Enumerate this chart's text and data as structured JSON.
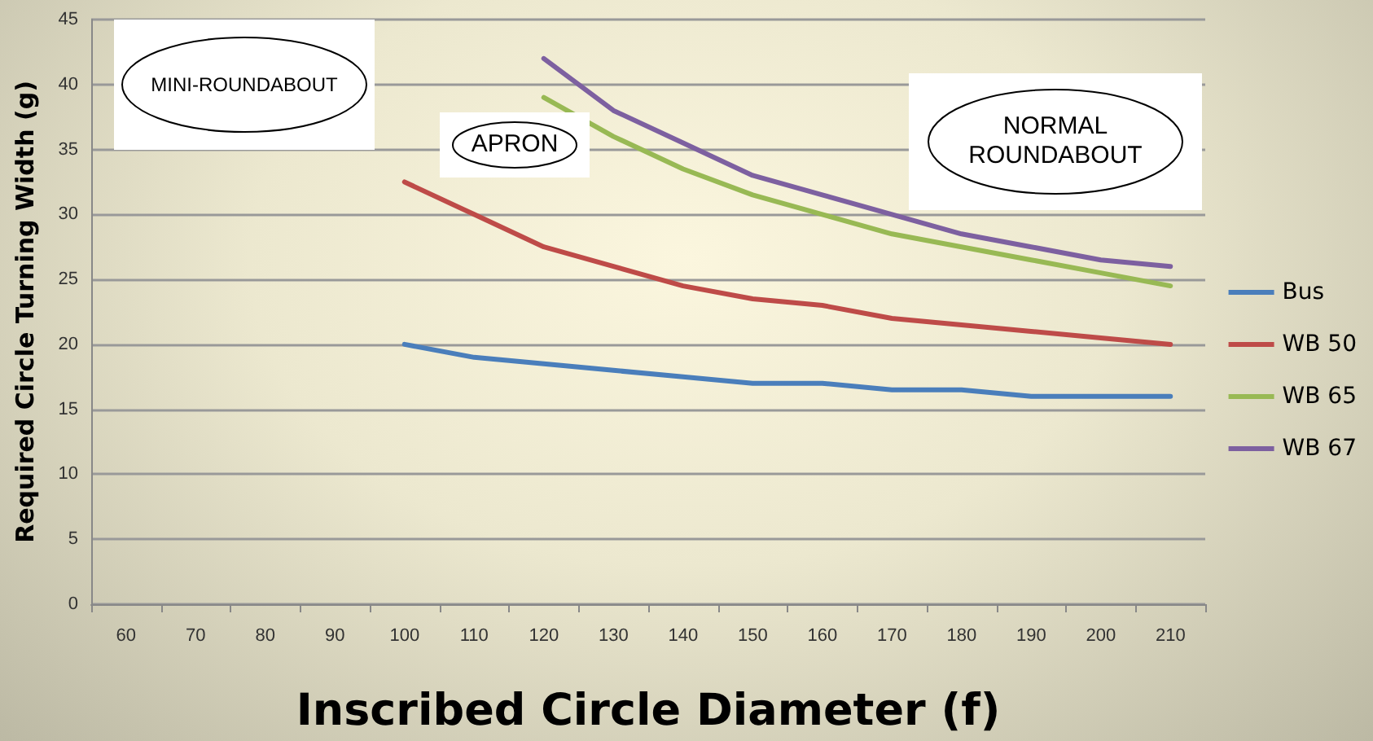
{
  "chart_data": {
    "type": "line",
    "xlabel": "Inscribed Circle Diameter (f)",
    "ylabel": "Required Circle Turning Width (g)",
    "categories": [
      "60",
      "70",
      "80",
      "90",
      "100",
      "110",
      "120",
      "130",
      "140",
      "150",
      "160",
      "170",
      "180",
      "190",
      "200",
      "210"
    ],
    "series": [
      {
        "name": "Bus",
        "color": "#4a7ebb",
        "values": [
          null,
          null,
          null,
          null,
          20,
          19,
          18.5,
          18,
          17.5,
          17,
          17,
          16.5,
          16.5,
          16,
          16,
          16
        ]
      },
      {
        "name": "WB 50",
        "color": "#be4b48",
        "values": [
          null,
          null,
          null,
          null,
          32.5,
          30,
          27.5,
          26,
          24.5,
          23.5,
          23,
          22,
          21.5,
          21,
          20.5,
          20
        ]
      },
      {
        "name": "WB 65",
        "color": "#98b954",
        "values": [
          null,
          null,
          null,
          null,
          null,
          null,
          39,
          36,
          33.5,
          31.5,
          30,
          28.5,
          27.5,
          26.5,
          25.5,
          24.5
        ]
      },
      {
        "name": "WB 67",
        "color": "#7d60a0",
        "values": [
          null,
          null,
          null,
          null,
          null,
          null,
          42,
          38,
          35.5,
          33,
          31.5,
          30,
          28.5,
          27.5,
          26.5,
          26
        ]
      }
    ],
    "ylim": [
      0,
      45
    ],
    "yticks": [
      0,
      5,
      10,
      15,
      20,
      25,
      30,
      35,
      40,
      45
    ],
    "grid": "y",
    "legend": "right",
    "marker": "none",
    "line_style": "solid",
    "annotations": [
      "MINI-ROUNDABOUT",
      "APRON",
      "NORMAL ROUNDABOUT"
    ]
  }
}
